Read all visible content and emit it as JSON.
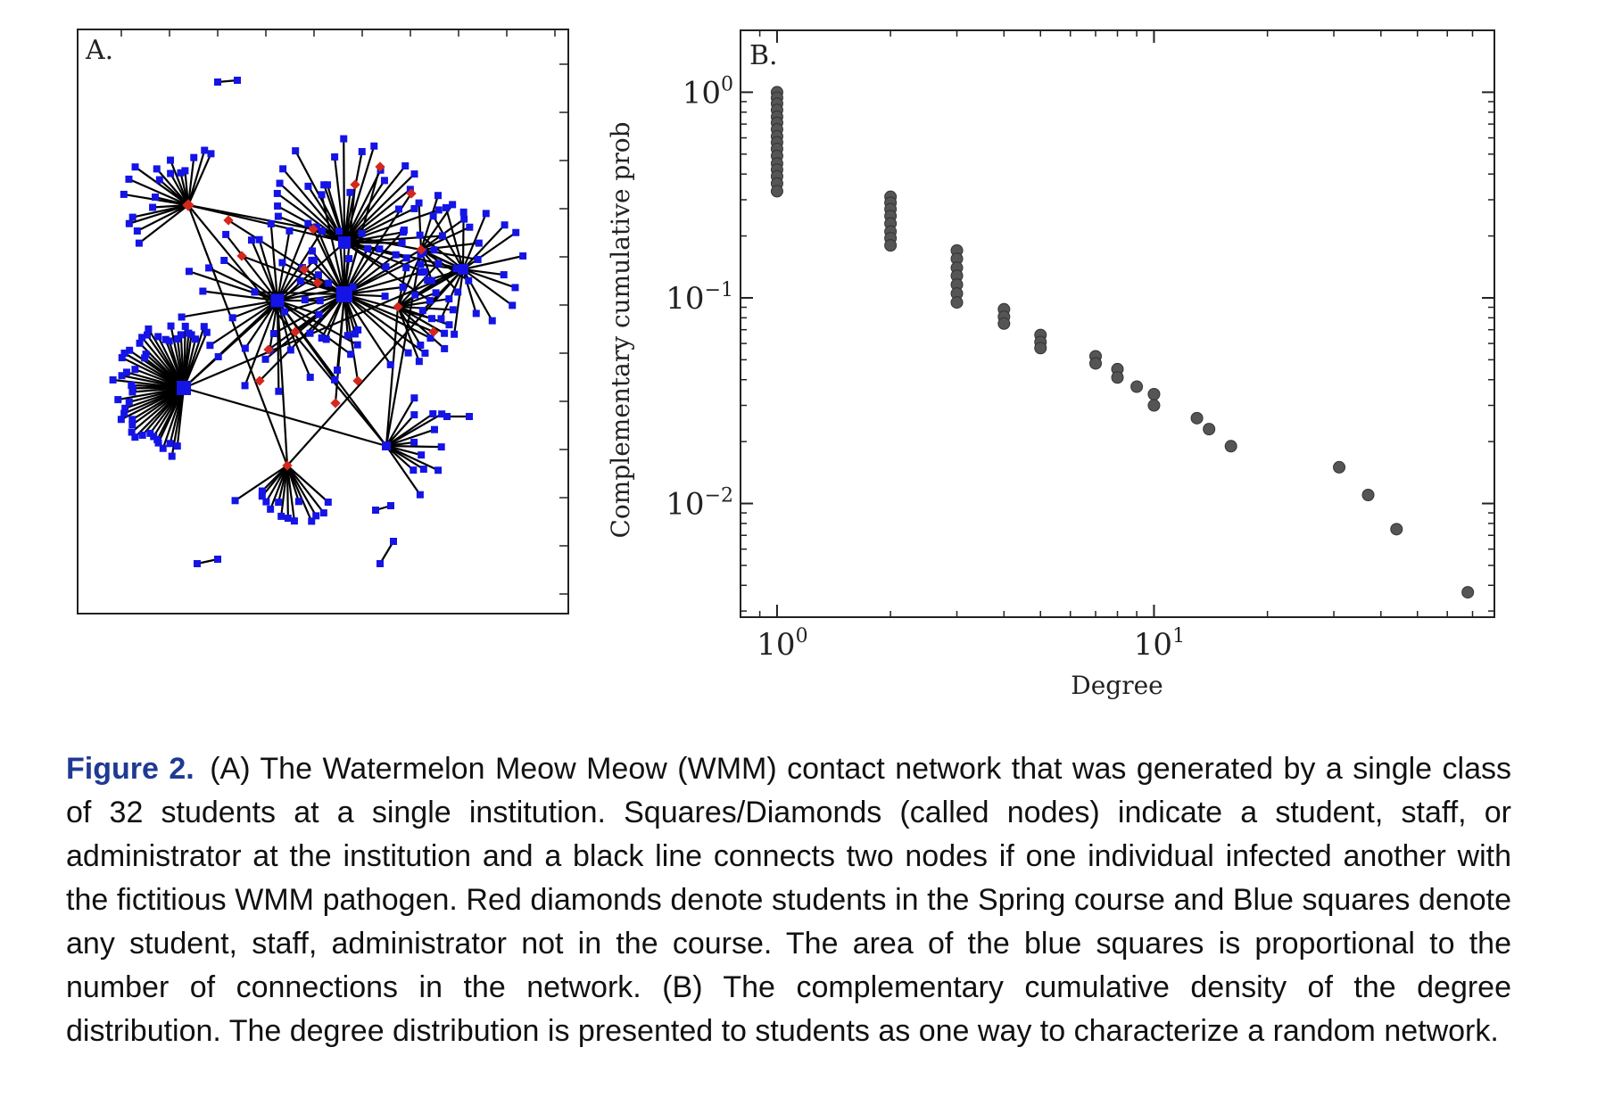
{
  "figure": {
    "label": "Figure 2.",
    "caption": "(A) The Watermelon Meow Meow (WMM) contact network that was generated by a single class of 32 students at a single institution. Squares/Diamonds (called nodes) indicate a student, staff, or administrator at the institution and a black line connects two nodes if one individual infected another with the fictitious WMM pathogen. Red diamonds denote students in the Spring course and Blue squares denote any student, staff, administrator not in the course. The area of the blue squares is proportional to the number of connections in the network. (B) The complementary cumulative density of the degree distribution. The degree distribution is presented to students as one way to characterize a random network."
  },
  "panel_a": {
    "label": "A.",
    "node_colors": {
      "other": "#1414e6",
      "course_student": "#d4281c"
    },
    "edge_color": "#000000"
  },
  "chart_data": {
    "type": "scatter",
    "panel_label": "B.",
    "xlabel": "Degree",
    "ylabel": "Complementary cumulative prob",
    "xscale": "log",
    "yscale": "log",
    "xlim": [
      0.8,
      80
    ],
    "ylim": [
      0.0028,
      2.0
    ],
    "x_ticks": [
      {
        "value": 1,
        "label": "10^0"
      },
      {
        "value": 10,
        "label": "10^1"
      }
    ],
    "y_ticks": [
      {
        "value": 1,
        "label": "10^0"
      },
      {
        "value": 0.1,
        "label": "10^-1"
      },
      {
        "value": 0.01,
        "label": "10^-2"
      }
    ],
    "grid": false,
    "marker_color": "#555555",
    "series": [
      {
        "points": [
          {
            "x": 1,
            "y": 1.0
          },
          {
            "x": 1,
            "y": 0.94
          },
          {
            "x": 1,
            "y": 0.88
          },
          {
            "x": 1,
            "y": 0.82
          },
          {
            "x": 1,
            "y": 0.76
          },
          {
            "x": 1,
            "y": 0.71
          },
          {
            "x": 1,
            "y": 0.66
          },
          {
            "x": 1,
            "y": 0.61
          },
          {
            "x": 1,
            "y": 0.57
          },
          {
            "x": 1,
            "y": 0.53
          },
          {
            "x": 1,
            "y": 0.49
          },
          {
            "x": 1,
            "y": 0.45
          },
          {
            "x": 1,
            "y": 0.42
          },
          {
            "x": 1,
            "y": 0.39
          },
          {
            "x": 1,
            "y": 0.36
          },
          {
            "x": 1,
            "y": 0.33
          },
          {
            "x": 2,
            "y": 0.31
          },
          {
            "x": 2,
            "y": 0.29
          },
          {
            "x": 2,
            "y": 0.27
          },
          {
            "x": 2,
            "y": 0.25
          },
          {
            "x": 2,
            "y": 0.23
          },
          {
            "x": 2,
            "y": 0.21
          },
          {
            "x": 2,
            "y": 0.195
          },
          {
            "x": 2,
            "y": 0.18
          },
          {
            "x": 3,
            "y": 0.17
          },
          {
            "x": 3,
            "y": 0.155
          },
          {
            "x": 3,
            "y": 0.14
          },
          {
            "x": 3,
            "y": 0.128
          },
          {
            "x": 3,
            "y": 0.116
          },
          {
            "x": 3,
            "y": 0.105
          },
          {
            "x": 3,
            "y": 0.095
          },
          {
            "x": 4,
            "y": 0.088
          },
          {
            "x": 4,
            "y": 0.081
          },
          {
            "x": 4,
            "y": 0.075
          },
          {
            "x": 5,
            "y": 0.066
          },
          {
            "x": 5,
            "y": 0.061
          },
          {
            "x": 5,
            "y": 0.057
          },
          {
            "x": 7,
            "y": 0.052
          },
          {
            "x": 7,
            "y": 0.048
          },
          {
            "x": 8,
            "y": 0.045
          },
          {
            "x": 8,
            "y": 0.041
          },
          {
            "x": 9,
            "y": 0.037
          },
          {
            "x": 10,
            "y": 0.034
          },
          {
            "x": 10,
            "y": 0.03
          },
          {
            "x": 13,
            "y": 0.026
          },
          {
            "x": 14,
            "y": 0.023
          },
          {
            "x": 16,
            "y": 0.019
          },
          {
            "x": 31,
            "y": 0.015
          },
          {
            "x": 37,
            "y": 0.011
          },
          {
            "x": 44,
            "y": 0.0075
          },
          {
            "x": 68,
            "y": 0.0037
          }
        ]
      }
    ]
  }
}
